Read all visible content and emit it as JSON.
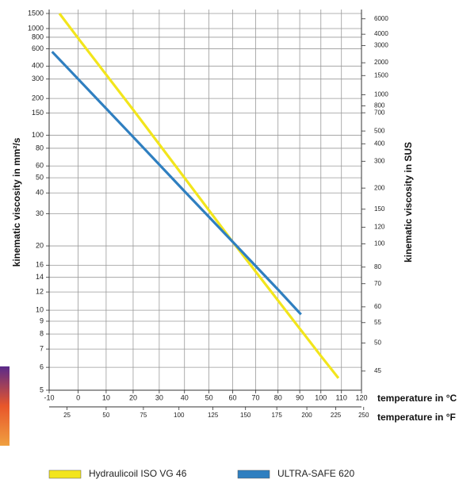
{
  "chart_data": {
    "type": "line",
    "ylabel": "kinematic viscosity in mm²/s",
    "y2label": "kinematic viscosity in SUS",
    "xlabel": "temperature in °C",
    "x2label": "temperature in °F",
    "xscale": "log-kelvin",
    "x2scale": "fahrenheit",
    "yscale": "walther",
    "y2scale": "saybolt",
    "xlim": [
      -10,
      120
    ],
    "xticks": [
      -10,
      0,
      10,
      20,
      30,
      40,
      50,
      60,
      70,
      80,
      90,
      100,
      110,
      120
    ],
    "x2lim": [
      14,
      248
    ],
    "x2ticks": [
      25,
      50,
      75,
      100,
      125,
      150,
      175,
      200,
      225,
      250
    ],
    "ylim": [
      5,
      1500
    ],
    "yticks": [
      1500,
      1000,
      800,
      600,
      400,
      300,
      200,
      150,
      100,
      80,
      60,
      50,
      40,
      30,
      20,
      16,
      14,
      12,
      10,
      9,
      8,
      7,
      6,
      5
    ],
    "y2lim": [
      42.4,
      6949
    ],
    "y2ticks": [
      6000,
      4000,
      3000,
      2000,
      1500,
      1000,
      800,
      700,
      500,
      400,
      300,
      200,
      150,
      120,
      100,
      80,
      70,
      60,
      55,
      50,
      45
    ],
    "grid": true,
    "series": [
      {
        "name": "Hydraulicoil ISO VG 46",
        "color": "#f2e51c",
        "x": [
          -6.5,
          0,
          20,
          40,
          60,
          80,
          100,
          108.5
        ],
        "values": [
          1500,
          780,
          160,
          50,
          21,
          11,
          6.6,
          5.5
        ]
      },
      {
        "name": "ULTRA-SAFE 620",
        "color": "#2f7fc0",
        "x": [
          -9,
          0,
          20,
          40,
          60,
          80,
          90.6
        ],
        "values": [
          560,
          300,
          97,
          41,
          21,
          12.3,
          9.6
        ]
      }
    ]
  }
}
